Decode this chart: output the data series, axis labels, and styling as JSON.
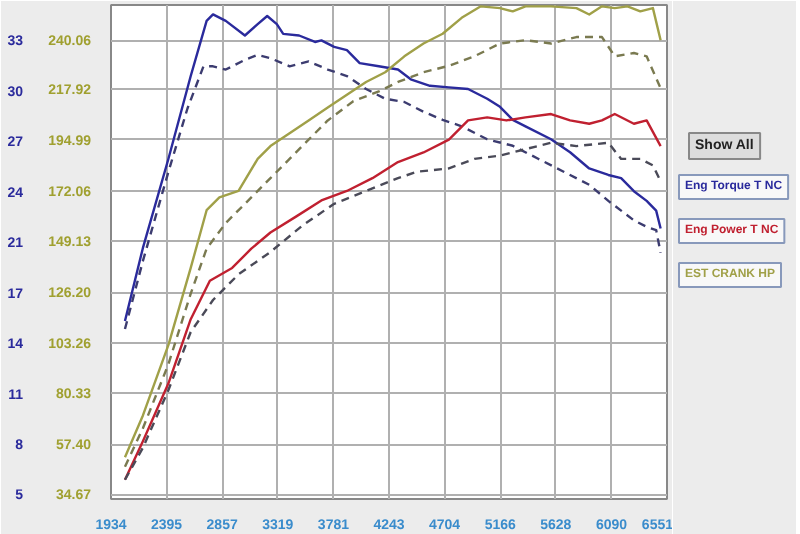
{
  "chart_data": {
    "type": "line",
    "xlim": [
      1934,
      6551
    ],
    "xticks": [
      1934,
      2395,
      2857,
      3319,
      3781,
      4243,
      4704,
      5166,
      5628,
      6090,
      6551
    ],
    "ylim": [
      32.6,
      256.0
    ],
    "yticks": [
      34.67,
      {
        "value": 57.4,
        "label": "57.40"
      },
      80.33,
      103.26,
      {
        "value": 126.2,
        "label": "126.20"
      },
      149.13,
      172.06,
      194.99,
      217.92,
      240.06
    ],
    "y2lim": [
      4.72,
      35.18
    ],
    "y2ticks": [
      5,
      {
        "value": 8.11,
        "label": "8"
      },
      {
        "value": 11.22,
        "label": "11"
      },
      {
        "value": 14.33,
        "label": "14"
      },
      {
        "value": 17.44,
        "label": "17"
      },
      {
        "value": 20.56,
        "label": "21"
      },
      {
        "value": 23.67,
        "label": "24"
      },
      {
        "value": 26.78,
        "label": "27"
      },
      {
        "value": 29.89,
        "label": "30"
      },
      33
    ],
    "grid": true,
    "legend": "right",
    "marker": "none",
    "annotations": [
      "Show All"
    ],
    "series": [
      {
        "name": "Eng Torque T NC",
        "color": "#2a2a9c",
        "axis": "y2",
        "line_style": "solid",
        "x": [
          2050,
          2199,
          2411,
          2596,
          2728,
          2781,
          2887,
          3046,
          3152,
          3231,
          3311,
          3364,
          3496,
          3628,
          3681,
          3787,
          3893,
          3999,
          4158,
          4317,
          4423,
          4582,
          4740,
          4899,
          5058,
          5164,
          5270,
          5376,
          5588,
          5746,
          5905,
          6064,
          6170,
          6276,
          6382,
          6461,
          6498
        ],
        "values": [
          15.7,
          20.2,
          25.7,
          30.8,
          34.2,
          34.6,
          34.2,
          33.3,
          34.0,
          34.5,
          34.0,
          33.4,
          33.3,
          32.9,
          33.0,
          32.6,
          32.4,
          31.6,
          31.4,
          31.2,
          30.6,
          30.2,
          30.1,
          30.0,
          29.4,
          28.9,
          28.1,
          27.7,
          26.9,
          26.1,
          25.1,
          24.7,
          24.5,
          23.7,
          23.1,
          22.5,
          21.4
        ]
      },
      {
        "color": "#3c3c70",
        "axis": "y2",
        "line_style": "dashed",
        "x": [
          2050,
          2199,
          2411,
          2569,
          2702,
          2781,
          2887,
          3046,
          3152,
          3258,
          3417,
          3575,
          3734,
          3893,
          4052,
          4211,
          4370,
          4529,
          4688,
          4846,
          5058,
          5270,
          5481,
          5693,
          5905,
          6064,
          6170,
          6276,
          6382,
          6461,
          6498
        ],
        "values": [
          15.2,
          19.4,
          24.9,
          28.8,
          31.4,
          31.4,
          31.2,
          31.8,
          32.1,
          31.9,
          31.4,
          31.7,
          31.2,
          30.8,
          30.0,
          29.4,
          29.2,
          28.6,
          28.1,
          27.7,
          26.9,
          26.5,
          25.7,
          24.9,
          24.1,
          23.1,
          22.5,
          21.9,
          21.5,
          21.3,
          19.9
        ]
      },
      {
        "name": "Eng Power T NC",
        "color": "#c02030",
        "line_style": "solid",
        "x": [
          2050,
          2199,
          2411,
          2596,
          2755,
          2940,
          3099,
          3258,
          3470,
          3681,
          3893,
          4105,
          4317,
          4529,
          4740,
          4899,
          5058,
          5217,
          5376,
          5588,
          5746,
          5905,
          6011,
          6117,
          6276,
          6382,
          6498
        ],
        "values": [
          41.3,
          58.7,
          84.9,
          113.9,
          131.3,
          137.1,
          145.8,
          153.1,
          160.3,
          167.6,
          171.9,
          177.7,
          185.0,
          189.3,
          195.1,
          203.8,
          205.2,
          203.8,
          205.2,
          206.7,
          203.8,
          202.3,
          203.8,
          206.7,
          202.3,
          203.8,
          192.2
        ]
      },
      {
        "color": "#4a4a58",
        "line_style": "dashed",
        "x": [
          2050,
          2199,
          2411,
          2596,
          2781,
          2993,
          3258,
          3522,
          3787,
          4052,
          4317,
          4476,
          4740,
          4952,
          5164,
          5376,
          5588,
          5799,
          6064,
          6170,
          6329,
          6434,
          6498
        ],
        "values": [
          41.3,
          55.8,
          81.9,
          108.1,
          122.6,
          134.2,
          144.3,
          156.2,
          166.1,
          171.9,
          177.7,
          180.6,
          182.1,
          186.4,
          187.9,
          190.8,
          193.7,
          192.2,
          193.7,
          186.4,
          186.4,
          183.5,
          176.3
        ]
      },
      {
        "name": "EST CRANK HP",
        "color": "#a0a048",
        "line_style": "solid",
        "x": [
          2050,
          2199,
          2411,
          2596,
          2728,
          2834,
          2993,
          3152,
          3258,
          3417,
          3575,
          3734,
          3893,
          4052,
          4211,
          4370,
          4529,
          4688,
          4846,
          5005,
          5164,
          5270,
          5376,
          5588,
          5799,
          5905,
          6011,
          6117,
          6223,
          6329,
          6434,
          6498
        ],
        "values": [
          51.5,
          70.4,
          102.3,
          137.1,
          163.2,
          169.0,
          171.9,
          186.4,
          192.2,
          198.0,
          203.8,
          209.6,
          215.4,
          221.2,
          225.6,
          232.8,
          238.6,
          243.0,
          250.2,
          255.4,
          254.6,
          253.1,
          255.4,
          255.4,
          254.6,
          251.7,
          255.4,
          254.6,
          255.4,
          253.1,
          254.6,
          240.1
        ]
      },
      {
        "color": "#7a7a50",
        "line_style": "dashed",
        "x": [
          2050,
          2199,
          2411,
          2596,
          2728,
          2887,
          3046,
          3258,
          3417,
          3575,
          3734,
          3946,
          4158,
          4317,
          4529,
          4740,
          4952,
          5164,
          5376,
          5588,
          5799,
          6011,
          6117,
          6276,
          6382,
          6498
        ],
        "values": [
          47.2,
          64.6,
          93.6,
          125.5,
          145.8,
          157.4,
          166.1,
          177.7,
          186.4,
          195.1,
          203.8,
          212.5,
          216.9,
          221.2,
          225.6,
          228.5,
          232.8,
          238.6,
          240.1,
          238.6,
          241.5,
          241.5,
          232.8,
          234.3,
          232.8,
          218.3
        ]
      }
    ]
  }
}
